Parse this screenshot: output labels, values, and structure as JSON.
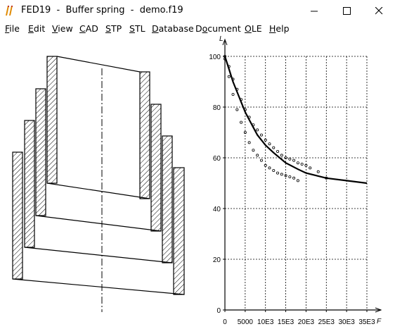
{
  "window": {
    "title": "FED19  -  Buffer spring  -  demo.f19",
    "icon": "fed19-app-icon",
    "controls": [
      "minimize-icon",
      "maximize-icon",
      "close-icon"
    ]
  },
  "menu": [
    {
      "key": "F",
      "rest": "ile"
    },
    {
      "key": "E",
      "rest": "dit"
    },
    {
      "key": "V",
      "rest": "iew"
    },
    {
      "key": "C",
      "rest": "AD"
    },
    {
      "key": "S",
      "rest": "TP"
    },
    {
      "key": "S",
      "rest": "TL"
    },
    {
      "key": "D",
      "rest": "atabase"
    },
    {
      "key": "o",
      "pre": "D",
      "rest": "cument"
    },
    {
      "key": "O",
      "rest": "LE"
    },
    {
      "key": "H",
      "rest": "elp"
    }
  ],
  "chart_data": {
    "type": "line",
    "ylabel": "L",
    "xlabel": "F",
    "xlim": [
      0,
      35000
    ],
    "ylim": [
      0,
      100
    ],
    "x_ticks": [
      "0",
      "5000",
      "10E3",
      "15E3",
      "20E3",
      "25E3",
      "30E3",
      "35E3"
    ],
    "y_ticks": [
      "0",
      "20",
      "40",
      "60",
      "80",
      "100"
    ],
    "grid": true,
    "series": [
      {
        "style": "solid",
        "x": [
          0,
          1000,
          2000,
          3000,
          4000,
          5000,
          6000,
          7000,
          8000,
          10000,
          12000,
          15000,
          18000,
          20000,
          25000,
          30000,
          35000
        ],
        "y": [
          100,
          95,
          90,
          86,
          82,
          78,
          75,
          72,
          69,
          65,
          62,
          58,
          55.5,
          54,
          52,
          51,
          50
        ]
      },
      {
        "style": "markers",
        "x": [
          0,
          1000,
          2000,
          3000,
          4000,
          5000,
          6000,
          7000,
          8000,
          9000,
          10000,
          11000,
          12000,
          13000,
          14000,
          15000,
          16000,
          17000,
          18000,
          19000,
          20000,
          21000,
          23000,
          25000
        ],
        "y": [
          100,
          96,
          91,
          87,
          83,
          79,
          76,
          73,
          71,
          69,
          67,
          65.5,
          64,
          62.5,
          61,
          60,
          59.5,
          59,
          58,
          57.5,
          57,
          56,
          54.5,
          52
        ]
      },
      {
        "style": "markers",
        "x": [
          0,
          1000,
          2000,
          3000,
          4000,
          5000,
          6000,
          7000,
          8000,
          9000,
          10000,
          11000,
          12000,
          13000,
          14000,
          15000,
          16000,
          17000,
          18000
        ],
        "y": [
          99,
          92,
          85,
          79,
          74,
          70,
          66,
          63,
          61,
          59,
          57,
          56,
          55,
          54,
          53.5,
          53,
          52.5,
          52,
          51
        ]
      }
    ]
  }
}
